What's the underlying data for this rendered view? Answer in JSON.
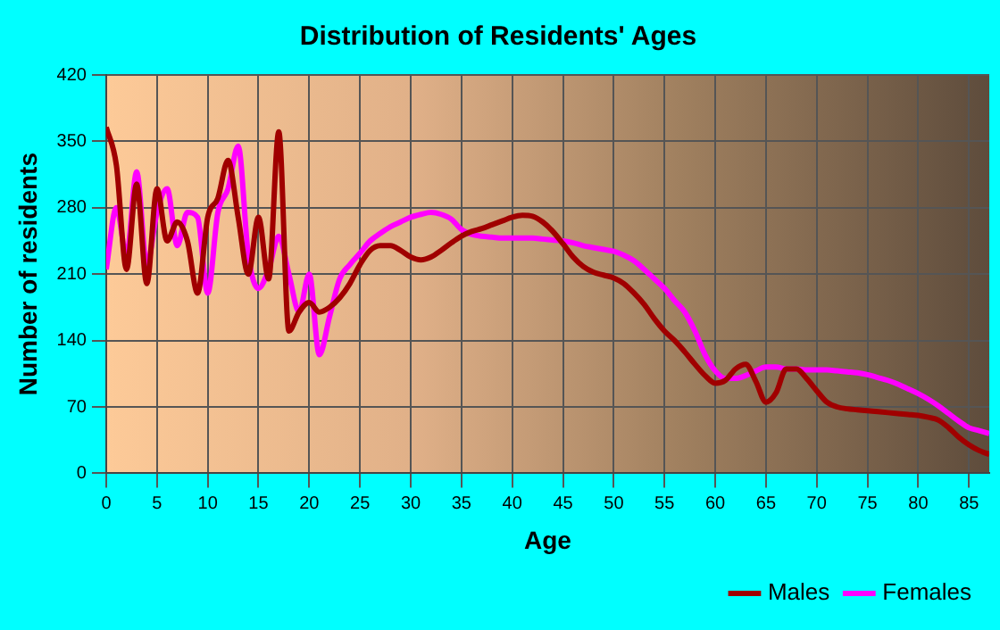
{
  "chart_data": {
    "type": "line",
    "title": "Distribution of Residents' Ages",
    "xlabel": "Age",
    "ylabel": "Number of residents",
    "xlim": [
      0,
      87
    ],
    "xticks": [
      0,
      5,
      10,
      15,
      20,
      25,
      30,
      35,
      40,
      45,
      50,
      55,
      60,
      65,
      70,
      75,
      80,
      85
    ],
    "ylim": [
      0,
      420
    ],
    "yticks": [
      0,
      70,
      140,
      210,
      280,
      350,
      420
    ],
    "grid": true,
    "legend": "bottom right",
    "marker": "none",
    "line_style": "solid",
    "x": [
      0,
      1,
      2,
      3,
      4,
      5,
      6,
      7,
      8,
      9,
      10,
      11,
      12,
      13,
      14,
      15,
      16,
      17,
      18,
      19,
      20,
      21,
      22,
      23,
      24,
      25,
      26,
      27,
      28,
      29,
      30,
      31,
      32,
      33,
      34,
      35,
      36,
      37,
      38,
      39,
      40,
      41,
      42,
      43,
      44,
      45,
      46,
      47,
      48,
      49,
      50,
      51,
      52,
      53,
      54,
      55,
      56,
      57,
      58,
      59,
      60,
      61,
      62,
      63,
      64,
      65,
      66,
      67,
      68,
      69,
      70,
      71,
      72,
      73,
      74,
      75,
      76,
      77,
      78,
      79,
      80,
      81,
      82,
      83,
      84,
      85,
      86,
      87
    ],
    "series": [
      {
        "name": "Males",
        "color": "#a00000",
        "values": [
          365,
          325,
          215,
          305,
          200,
          300,
          245,
          265,
          245,
          190,
          270,
          290,
          330,
          270,
          210,
          270,
          205,
          360,
          150,
          170,
          180,
          170,
          175,
          185,
          200,
          220,
          235,
          240,
          240,
          235,
          228,
          225,
          228,
          235,
          243,
          250,
          255,
          258,
          262,
          266,
          270,
          272,
          271,
          265,
          255,
          242,
          228,
          218,
          212,
          209,
          206,
          200,
          190,
          178,
          163,
          150,
          140,
          128,
          115,
          103,
          95,
          98,
          110,
          115,
          97,
          75,
          85,
          110,
          110,
          100,
          87,
          75,
          70,
          68,
          67,
          66,
          65,
          64,
          63,
          62,
          61,
          59,
          56,
          48,
          38,
          30,
          24,
          20
        ]
      },
      {
        "name": "Females",
        "color": "#ff00ff",
        "values": [
          215,
          280,
          230,
          318,
          220,
          275,
          300,
          240,
          275,
          270,
          190,
          275,
          300,
          345,
          230,
          195,
          215,
          250,
          210,
          170,
          210,
          125,
          165,
          205,
          220,
          232,
          245,
          253,
          260,
          265,
          270,
          273,
          275,
          273,
          268,
          257,
          252,
          250,
          249,
          248,
          248,
          248,
          248,
          247,
          246,
          245,
          243,
          240,
          238,
          236,
          234,
          230,
          224,
          215,
          205,
          195,
          182,
          170,
          150,
          125,
          108,
          100,
          100,
          103,
          108,
          112,
          112,
          110,
          110,
          109,
          109,
          109,
          108,
          107,
          106,
          104,
          101,
          98,
          94,
          89,
          84,
          78,
          71,
          63,
          55,
          48,
          45,
          42
        ]
      }
    ]
  }
}
